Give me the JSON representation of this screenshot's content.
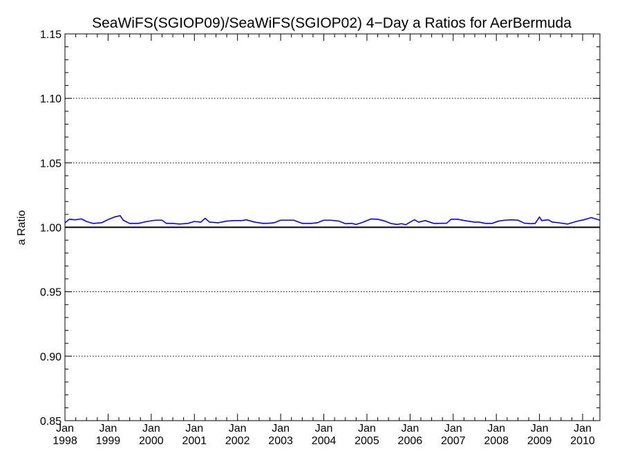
{
  "chart_data": {
    "type": "line",
    "title": "SeaWiFS(SGIOP09)/SeaWiFS(SGIOP02) 4−Day a Ratios for AerBermuda",
    "xlabel": "",
    "ylabel": "a Ratio",
    "ylim": [
      0.85,
      1.15
    ],
    "y_ticks": [
      "0.85",
      "0.90",
      "0.95",
      "1.00",
      "1.05",
      "1.10",
      "1.15"
    ],
    "y_gridlines": [
      0.9,
      0.95,
      1.05,
      1.1
    ],
    "y_gridline_style": "dotted",
    "reference_line": 1.0,
    "xlim": [
      1998.0,
      2010.4
    ],
    "x_ticks": [
      {
        "month": "Jan",
        "year": "1998",
        "x": 1998
      },
      {
        "month": "Jan",
        "year": "1999",
        "x": 1999
      },
      {
        "month": "Jan",
        "year": "2000",
        "x": 2000
      },
      {
        "month": "Jan",
        "year": "2001",
        "x": 2001
      },
      {
        "month": "Jan",
        "year": "2002",
        "x": 2002
      },
      {
        "month": "Jan",
        "year": "2003",
        "x": 2003
      },
      {
        "month": "Jan",
        "year": "2004",
        "x": 2004
      },
      {
        "month": "Jan",
        "year": "2005",
        "x": 2005
      },
      {
        "month": "Jan",
        "year": "2006",
        "x": 2006
      },
      {
        "month": "Jan",
        "year": "2007",
        "x": 2007
      },
      {
        "month": "Jan",
        "year": "2008",
        "x": 2008
      },
      {
        "month": "Jan",
        "year": "2009",
        "x": 2009
      },
      {
        "month": "Jan",
        "year": "2010",
        "x": 2010
      }
    ],
    "series": [
      {
        "color": "#0000ff",
        "points": [
          [
            1998.0,
            1.0035
          ],
          [
            1998.1,
            1.0062
          ],
          [
            1998.25,
            1.0058
          ],
          [
            1998.38,
            1.0065
          ],
          [
            1998.5,
            1.0045
          ],
          [
            1998.65,
            1.003
          ],
          [
            1998.85,
            1.0035
          ],
          [
            1999.0,
            1.006
          ],
          [
            1999.15,
            1.008
          ],
          [
            1999.28,
            1.009
          ],
          [
            1999.35,
            1.0055
          ],
          [
            1999.5,
            1.003
          ],
          [
            1999.7,
            1.003
          ],
          [
            1999.9,
            1.0045
          ],
          [
            2000.1,
            1.0055
          ],
          [
            2000.25,
            1.0055
          ],
          [
            2000.35,
            1.003
          ],
          [
            2000.5,
            1.003
          ],
          [
            2000.65,
            1.0025
          ],
          [
            2000.85,
            1.003
          ],
          [
            2001.0,
            1.0045
          ],
          [
            2001.15,
            1.004
          ],
          [
            2001.25,
            1.007
          ],
          [
            2001.35,
            1.004
          ],
          [
            2001.55,
            1.0035
          ],
          [
            2001.75,
            1.0048
          ],
          [
            2001.95,
            1.0052
          ],
          [
            2002.1,
            1.0052
          ],
          [
            2002.2,
            1.0058
          ],
          [
            2002.4,
            1.004
          ],
          [
            2002.6,
            1.003
          ],
          [
            2002.75,
            1.0032
          ],
          [
            2002.85,
            1.0035
          ],
          [
            2003.0,
            1.0055
          ],
          [
            2003.15,
            1.0055
          ],
          [
            2003.3,
            1.0055
          ],
          [
            2003.5,
            1.003
          ],
          [
            2003.7,
            1.003
          ],
          [
            2003.85,
            1.0035
          ],
          [
            2004.0,
            1.0055
          ],
          [
            2004.15,
            1.0055
          ],
          [
            2004.35,
            1.0048
          ],
          [
            2004.5,
            1.0028
          ],
          [
            2004.65,
            1.003
          ],
          [
            2004.75,
            1.0022
          ],
          [
            2004.9,
            1.0038
          ],
          [
            2005.1,
            1.0065
          ],
          [
            2005.25,
            1.0062
          ],
          [
            2005.4,
            1.005
          ],
          [
            2005.55,
            1.003
          ],
          [
            2005.7,
            1.0022
          ],
          [
            2005.8,
            1.0028
          ],
          [
            2005.9,
            1.002
          ],
          [
            2006.0,
            1.004
          ],
          [
            2006.1,
            1.0058
          ],
          [
            2006.2,
            1.004
          ],
          [
            2006.35,
            1.0052
          ],
          [
            2006.55,
            1.003
          ],
          [
            2006.65,
            1.003
          ],
          [
            2006.85,
            1.0032
          ],
          [
            2006.95,
            1.0062
          ],
          [
            2007.1,
            1.0062
          ],
          [
            2007.3,
            1.005
          ],
          [
            2007.5,
            1.004
          ],
          [
            2007.6,
            1.004
          ],
          [
            2007.75,
            1.003
          ],
          [
            2007.9,
            1.003
          ],
          [
            2008.05,
            1.0048
          ],
          [
            2008.2,
            1.0055
          ],
          [
            2008.35,
            1.0058
          ],
          [
            2008.5,
            1.0055
          ],
          [
            2008.65,
            1.0032
          ],
          [
            2008.8,
            1.0028
          ],
          [
            2008.9,
            1.003
          ],
          [
            2009.0,
            1.008
          ],
          [
            2009.05,
            1.0052
          ],
          [
            2009.2,
            1.0058
          ],
          [
            2009.3,
            1.004
          ],
          [
            2009.45,
            1.0035
          ],
          [
            2009.65,
            1.0025
          ],
          [
            2009.85,
            1.0045
          ],
          [
            2010.05,
            1.006
          ],
          [
            2010.2,
            1.0075
          ],
          [
            2010.3,
            1.0065
          ],
          [
            2010.4,
            1.0055
          ]
        ]
      }
    ],
    "grid": true,
    "legend": "none"
  }
}
